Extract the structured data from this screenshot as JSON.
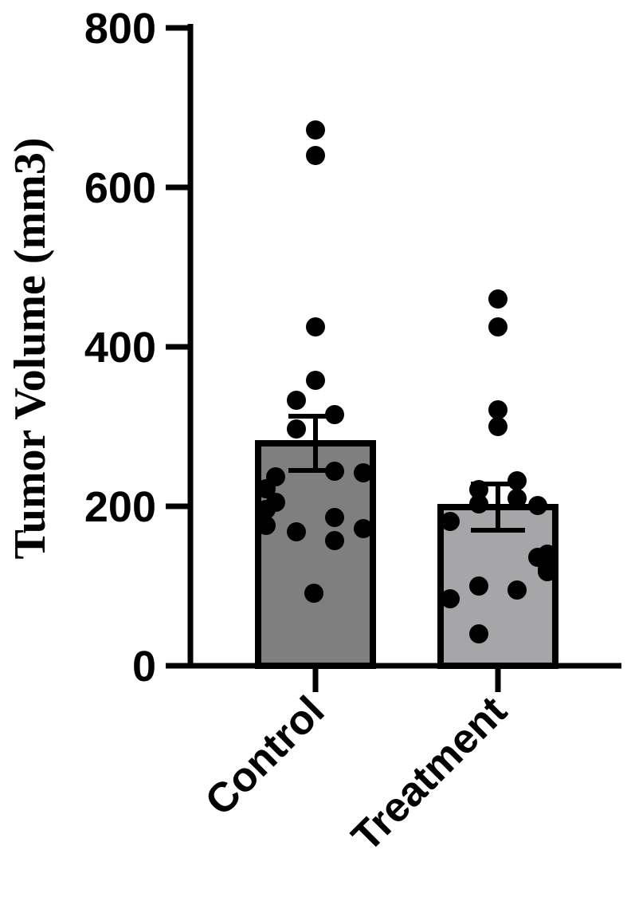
{
  "chart_data": {
    "type": "bar",
    "ylabel": "Tumor Volume (mm3)",
    "xlabel": "",
    "ylim": [
      0,
      800
    ],
    "yticks": [
      0,
      200,
      400,
      600,
      800
    ],
    "grid": false,
    "categories": [
      "Control",
      "Treatment"
    ],
    "values": [
      279,
      199
    ],
    "error": [
      34,
      29
    ],
    "bar_colors": [
      "#7f7f7f",
      "#a6a6a8"
    ],
    "points": [
      [
        672,
        640,
        425,
        358,
        333,
        315,
        297,
        244,
        237,
        242,
        222,
        205,
        196,
        176,
        186,
        168,
        172,
        157,
        91
      ],
      [
        460,
        425,
        321,
        300,
        232,
        221,
        210,
        203,
        201,
        181,
        140,
        136,
        121,
        118,
        100,
        95,
        84,
        40
      ]
    ]
  }
}
